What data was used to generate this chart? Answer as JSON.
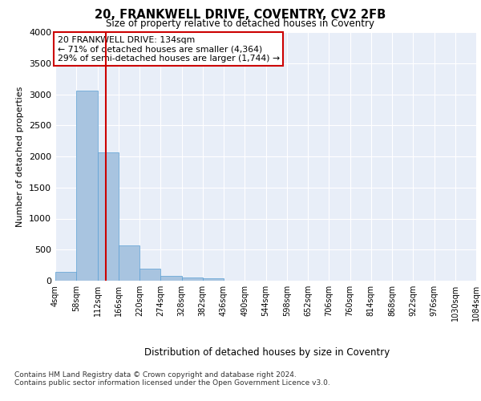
{
  "title": "20, FRANKWELL DRIVE, COVENTRY, CV2 2FB",
  "subtitle": "Size of property relative to detached houses in Coventry",
  "xlabel": "Distribution of detached houses by size in Coventry",
  "ylabel": "Number of detached properties",
  "bar_color": "#a8c4e0",
  "bar_edge_color": "#5a9fd4",
  "background_color": "#e8eef8",
  "grid_color": "#ffffff",
  "annotation_line_color": "#cc0000",
  "annotation_box_color": "#cc0000",
  "annotation_text": "20 FRANKWELL DRIVE: 134sqm\n← 71% of detached houses are smaller (4,364)\n29% of semi-detached houses are larger (1,744) →",
  "property_size": 134,
  "bin_edges": [
    4,
    58,
    112,
    166,
    220,
    274,
    328,
    382,
    436,
    490,
    544,
    598,
    652,
    706,
    760,
    814,
    868,
    922,
    976,
    1030,
    1084
  ],
  "bin_labels": [
    "4sqm",
    "58sqm",
    "112sqm",
    "166sqm",
    "220sqm",
    "274sqm",
    "328sqm",
    "382sqm",
    "436sqm",
    "490sqm",
    "544sqm",
    "598sqm",
    "652sqm",
    "706sqm",
    "760sqm",
    "814sqm",
    "868sqm",
    "922sqm",
    "976sqm",
    "1030sqm",
    "1084sqm"
  ],
  "bar_heights": [
    140,
    3060,
    2060,
    565,
    200,
    80,
    55,
    35,
    0,
    0,
    0,
    0,
    0,
    0,
    0,
    0,
    0,
    0,
    0,
    0
  ],
  "ylim": [
    0,
    4000
  ],
  "yticks": [
    0,
    500,
    1000,
    1500,
    2000,
    2500,
    3000,
    3500,
    4000
  ],
  "footer_line1": "Contains HM Land Registry data © Crown copyright and database right 2024.",
  "footer_line2": "Contains public sector information licensed under the Open Government Licence v3.0."
}
